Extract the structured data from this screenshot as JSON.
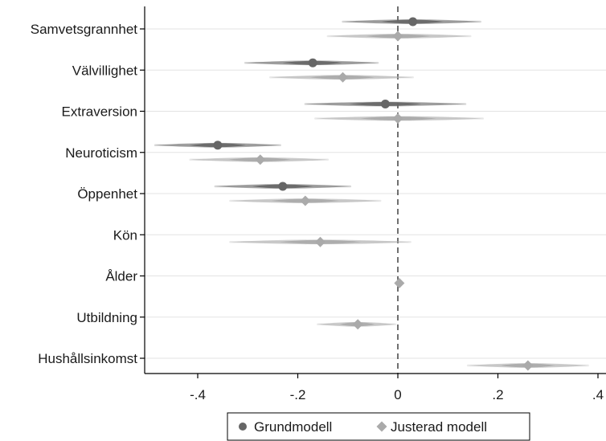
{
  "chart_data": {
    "type": "scatter",
    "title": "",
    "xlabel": "",
    "ylabel": "",
    "xlim": [
      -0.5,
      0.4
    ],
    "xticks": [
      -0.4,
      -0.2,
      0,
      0.2,
      0.4
    ],
    "xtick_labels": [
      "-.4",
      "-.2",
      "0",
      ".2",
      ".4"
    ],
    "reference_line": 0,
    "grid": true,
    "legend_position": "bottom",
    "categories": [
      "Samvetsgrannhet",
      "Välvillighet",
      "Extraversion",
      "Neuroticism",
      "Öppenhet",
      "Kön",
      "Ålder",
      "Utbildning",
      "Hushållsinkomst"
    ],
    "series": [
      {
        "name": "Grundmodell",
        "marker": "circle",
        "color": "#666666",
        "estimates": [
          0.03,
          -0.17,
          -0.025,
          -0.36,
          -0.23,
          null,
          null,
          null,
          null
        ],
        "ci_low": [
          -0.11,
          -0.305,
          -0.185,
          -0.485,
          -0.365,
          null,
          null,
          null,
          null
        ],
        "ci_high": [
          0.165,
          -0.04,
          0.135,
          -0.235,
          -0.095,
          null,
          null,
          null,
          null
        ]
      },
      {
        "name": "Justerad modell",
        "marker": "diamond",
        "color": "#aaaaaa",
        "estimates": [
          0.0,
          -0.11,
          0.0,
          -0.275,
          -0.185,
          -0.155,
          0.003,
          -0.08,
          0.26
        ],
        "ci_low": [
          -0.14,
          -0.255,
          -0.165,
          -0.415,
          -0.335,
          -0.335,
          -0.003,
          -0.16,
          0.14
        ],
        "ci_high": [
          0.145,
          0.03,
          0.17,
          -0.14,
          -0.035,
          0.025,
          0.009,
          -0.005,
          0.38
        ]
      }
    ]
  }
}
